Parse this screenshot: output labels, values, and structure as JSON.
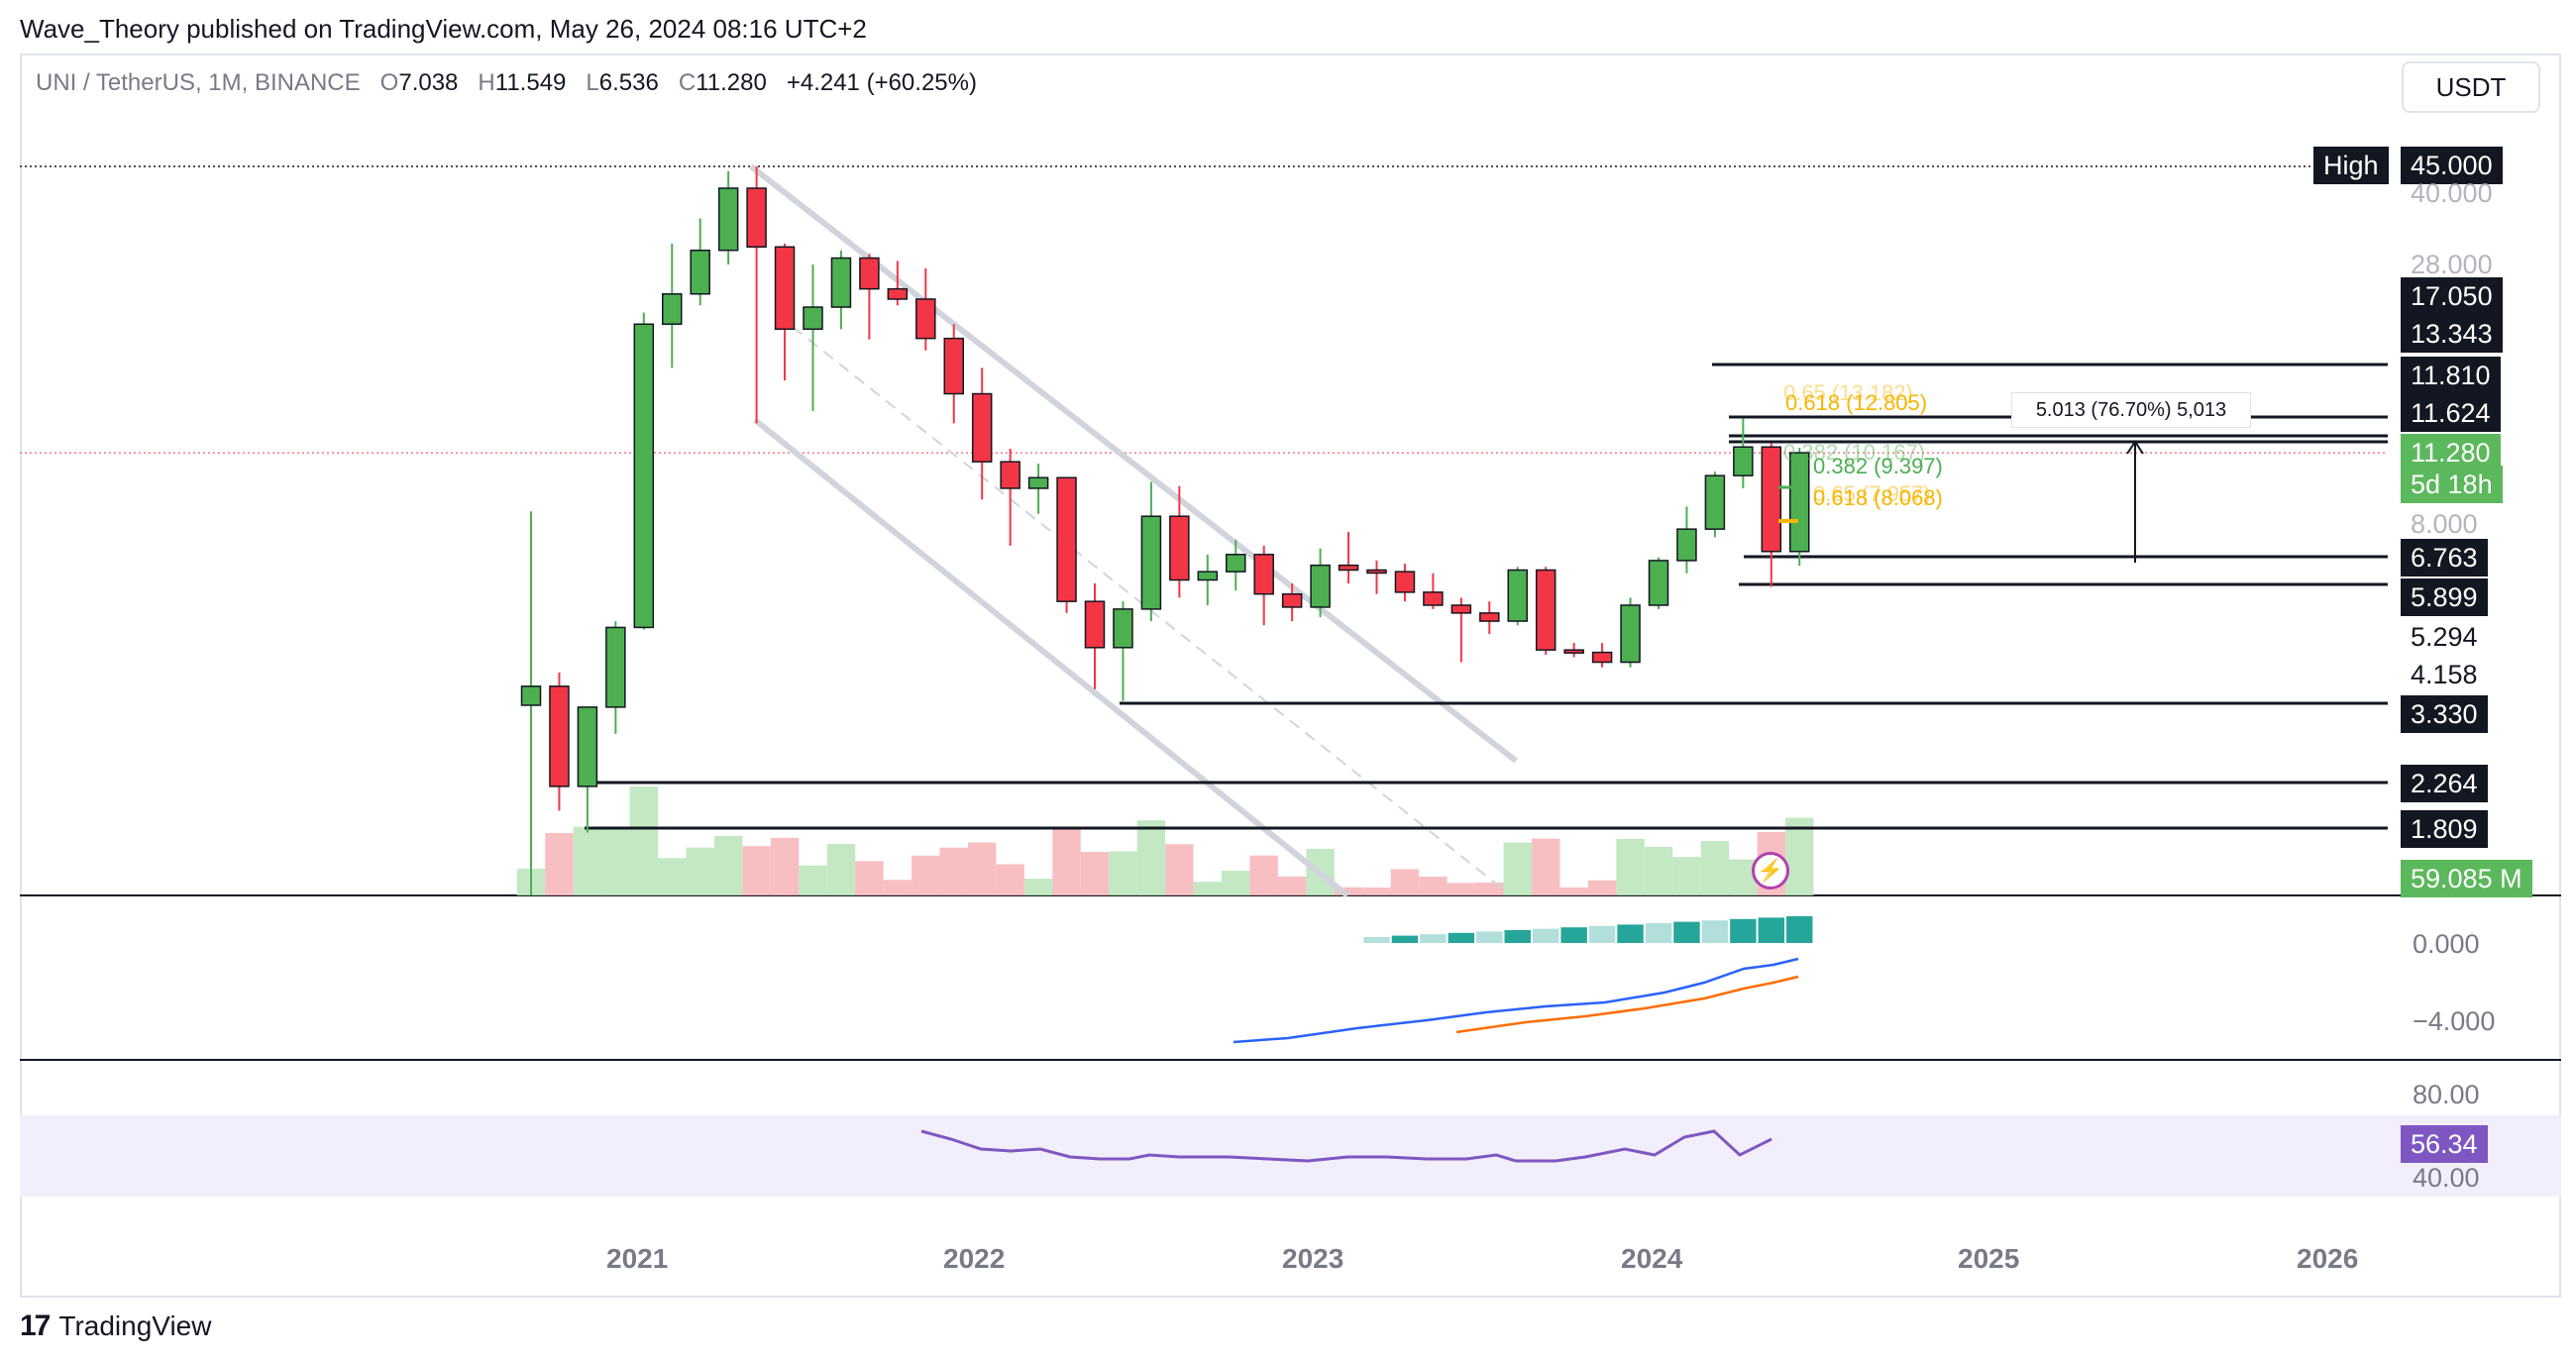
{
  "header": {
    "publisher": "Wave_Theory published on TradingView.com, May 26, 2024 08:16 UTC+2"
  },
  "legend": {
    "symbol": "UNI / TetherUS, 1M, BINANCE",
    "o_label": "O",
    "o": "7.038",
    "h_label": "H",
    "h": "11.549",
    "l_label": "L",
    "l": "6.536",
    "c_label": "C",
    "c": "11.280",
    "change": "+4.241 (+60.25%)"
  },
  "currency_button": "USDT",
  "price_axis": {
    "high_tag": "High",
    "high_value": "45.000",
    "labels": {
      "p40": "40.000",
      "p28": "28.000",
      "p17": "17.050",
      "p13": "13.343",
      "p11_8": "11.810",
      "p11_6": "11.624",
      "current": "11.280",
      "countdown": "5d 18h",
      "p8": "8.000",
      "p6_7": "6.763",
      "p5_9": "5.899",
      "p5_3": "5.294",
      "p4_2": "4.158",
      "p3_3": "3.330",
      "p2_3": "2.264",
      "p1_8": "1.809",
      "volume": "59.085 M"
    }
  },
  "macd_axis": {
    "zero": "0.000",
    "neg4": "−4.000"
  },
  "rsi_axis": {
    "upper": "80.00",
    "lower": "40.00",
    "current": "56.34"
  },
  "time_axis": [
    "2021",
    "2022",
    "2023",
    "2024",
    "2025",
    "2026"
  ],
  "annotations": {
    "fib_top_1": "0.65 (13.182)",
    "fib_top_2": "0.618 (12.805)",
    "fib_mid_1": "0.382 (9.397)",
    "fib_mid_ghost": "0.382 (10.167)",
    "fib_low_1": "0.618 (8.068)",
    "fib_low_ghost": "0.65 (7.957)",
    "measure": "5.013 (76.70%) 5,013"
  },
  "footer": {
    "brand": "TradingView"
  },
  "colors": {
    "up": "#4caf50",
    "down": "#f23645",
    "channel": "#d1d4dc",
    "macd_line": "#2962ff",
    "signal_line": "#ff6d00",
    "rsi_line": "#7e57c2",
    "rsi_band": "#f3eefb",
    "volume_badge": "#5cb85c",
    "fib_gold": "#f7b500",
    "fib_green": "#4caf50"
  },
  "chart_data": {
    "type": "candlestick",
    "symbol": "UNI / TetherUS",
    "interval": "1M",
    "exchange": "BINANCE",
    "y_scale": "log",
    "x_ticks": [
      "2021",
      "2022",
      "2023",
      "2024",
      "2025",
      "2026"
    ],
    "candles": [
      {
        "o": 3.33,
        "h": 8.5,
        "l": 0.8,
        "c": 3.65
      },
      {
        "o": 3.65,
        "h": 3.9,
        "l": 2.0,
        "c": 2.25
      },
      {
        "o": 2.25,
        "h": 3.2,
        "l": 1.8,
        "c": 3.3
      },
      {
        "o": 3.3,
        "h": 5.0,
        "l": 2.9,
        "c": 4.85
      },
      {
        "o": 4.85,
        "h": 22.2,
        "l": 4.8,
        "c": 21.0
      },
      {
        "o": 21.0,
        "h": 31.0,
        "l": 17.0,
        "c": 24.3
      },
      {
        "o": 24.3,
        "h": 35.0,
        "l": 23.0,
        "c": 30.0
      },
      {
        "o": 30.0,
        "h": 44.0,
        "l": 28.0,
        "c": 40.5
      },
      {
        "o": 40.5,
        "h": 45.0,
        "l": 13.0,
        "c": 30.5
      },
      {
        "o": 30.5,
        "h": 31.0,
        "l": 16.0,
        "c": 20.5
      },
      {
        "o": 20.5,
        "h": 28.0,
        "l": 13.8,
        "c": 22.8
      },
      {
        "o": 22.8,
        "h": 30.0,
        "l": 20.5,
        "c": 28.9
      },
      {
        "o": 28.9,
        "h": 29.5,
        "l": 19.5,
        "c": 24.9
      },
      {
        "o": 24.9,
        "h": 28.5,
        "l": 23.0,
        "c": 23.7
      },
      {
        "o": 23.7,
        "h": 27.5,
        "l": 18.5,
        "c": 19.6
      },
      {
        "o": 19.6,
        "h": 21.0,
        "l": 13.0,
        "c": 15.0
      },
      {
        "o": 15.0,
        "h": 17.0,
        "l": 9.0,
        "c": 10.8
      },
      {
        "o": 10.8,
        "h": 11.5,
        "l": 7.2,
        "c": 9.5
      },
      {
        "o": 9.5,
        "h": 10.7,
        "l": 8.4,
        "c": 10.0
      },
      {
        "o": 10.0,
        "h": 10.0,
        "l": 5.2,
        "c": 5.5
      },
      {
        "o": 5.5,
        "h": 6.0,
        "l": 3.6,
        "c": 4.4
      },
      {
        "o": 4.4,
        "h": 5.5,
        "l": 3.4,
        "c": 5.3
      },
      {
        "o": 5.3,
        "h": 9.8,
        "l": 5.0,
        "c": 8.3
      },
      {
        "o": 8.3,
        "h": 9.6,
        "l": 5.6,
        "c": 6.1
      },
      {
        "o": 6.1,
        "h": 6.9,
        "l": 5.4,
        "c": 6.35
      },
      {
        "o": 6.35,
        "h": 7.4,
        "l": 5.8,
        "c": 6.9
      },
      {
        "o": 6.9,
        "h": 7.2,
        "l": 4.9,
        "c": 5.7
      },
      {
        "o": 5.7,
        "h": 6.0,
        "l": 5.0,
        "c": 5.35
      },
      {
        "o": 5.35,
        "h": 7.1,
        "l": 5.1,
        "c": 6.55
      },
      {
        "o": 6.55,
        "h": 7.7,
        "l": 6.0,
        "c": 6.4
      },
      {
        "o": 6.4,
        "h": 6.7,
        "l": 5.7,
        "c": 6.35
      },
      {
        "o": 6.35,
        "h": 6.6,
        "l": 5.5,
        "c": 5.75
      },
      {
        "o": 5.75,
        "h": 6.3,
        "l": 5.3,
        "c": 5.4
      },
      {
        "o": 5.4,
        "h": 5.6,
        "l": 4.1,
        "c": 5.2
      },
      {
        "o": 5.2,
        "h": 5.5,
        "l": 4.7,
        "c": 5.0
      },
      {
        "o": 5.0,
        "h": 6.5,
        "l": 4.9,
        "c": 6.4
      },
      {
        "o": 6.4,
        "h": 6.5,
        "l": 4.25,
        "c": 4.35
      },
      {
        "o": 4.35,
        "h": 4.5,
        "l": 4.2,
        "c": 4.3
      },
      {
        "o": 4.3,
        "h": 4.5,
        "l": 4.0,
        "c": 4.1
      },
      {
        "o": 4.1,
        "h": 5.6,
        "l": 4.0,
        "c": 5.4
      },
      {
        "o": 5.4,
        "h": 6.8,
        "l": 5.3,
        "c": 6.7
      },
      {
        "o": 6.7,
        "h": 8.7,
        "l": 6.3,
        "c": 7.8
      },
      {
        "o": 7.8,
        "h": 10.3,
        "l": 7.5,
        "c": 10.1
      },
      {
        "o": 10.1,
        "h": 13.3,
        "l": 9.5,
        "c": 11.6
      },
      {
        "o": 11.6,
        "h": 11.8,
        "l": 5.9,
        "c": 7.0
      },
      {
        "o": 7.0,
        "h": 11.549,
        "l": 6.536,
        "c": 11.28
      }
    ],
    "horizontal_levels": [
      45.0,
      11.81,
      11.624,
      6.763,
      5.899,
      3.33,
      2.264,
      1.809
    ],
    "volume_last": "59.085 M",
    "rsi_last": 56.34
  }
}
